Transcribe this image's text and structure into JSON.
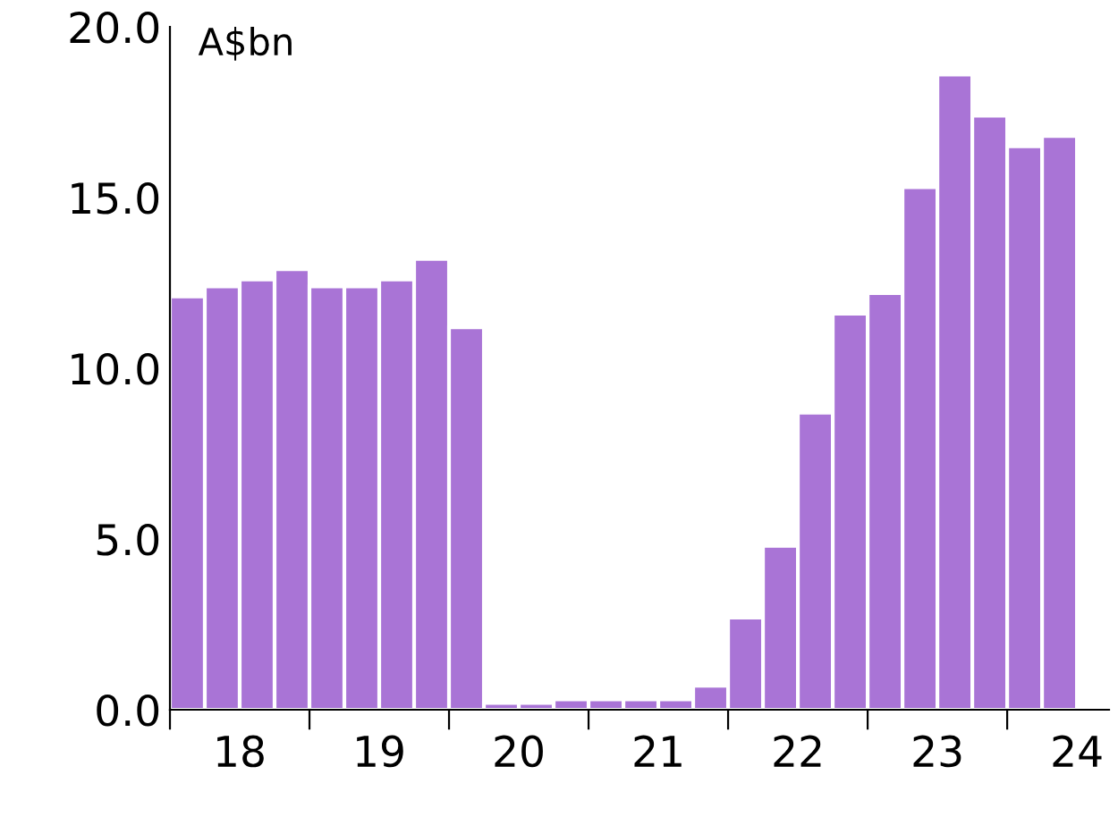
{
  "chart_data": {
    "type": "bar",
    "ylabel": "A$bn",
    "x": [
      17.625,
      17.875,
      18.125,
      18.375,
      18.625,
      18.875,
      19.125,
      19.375,
      19.625,
      19.875,
      20.125,
      20.375,
      20.625,
      20.875,
      21.125,
      21.375,
      21.625,
      21.875,
      22.125,
      22.375,
      22.625,
      22.875,
      23.125,
      23.375,
      23.625,
      23.875
    ],
    "values": [
      12.1,
      12.4,
      12.6,
      12.9,
      12.4,
      12.4,
      12.6,
      13.2,
      11.2,
      0.2,
      0.2,
      0.3,
      0.3,
      0.3,
      0.3,
      0.7,
      2.7,
      4.8,
      8.7,
      11.6,
      12.2,
      15.3,
      18.6,
      17.4,
      16.5,
      16.8
    ],
    "color": "#a974d6",
    "xlim": [
      17.5,
      24.23
    ],
    "xticks": [
      {
        "value": 17.5,
        "label": null
      },
      18,
      {
        "value": 18.5,
        "label": null
      },
      19,
      {
        "value": 19.5,
        "label": null
      },
      20,
      {
        "value": 20.5,
        "label": null
      },
      21,
      {
        "value": 21.5,
        "label": null
      },
      22,
      {
        "value": 22.5,
        "label": null
      },
      23,
      {
        "value": 23.5,
        "label": null
      },
      24
    ],
    "ylim": [
      0,
      20
    ],
    "yticks": [
      {
        "value": 0,
        "label": "0.0"
      },
      {
        "value": 5,
        "label": "5.0"
      },
      {
        "value": 10,
        "label": "10.0"
      },
      {
        "value": 15,
        "label": "15.0"
      },
      {
        "value": 20,
        "label": "20.0"
      }
    ],
    "grid": false,
    "legend": false
  }
}
